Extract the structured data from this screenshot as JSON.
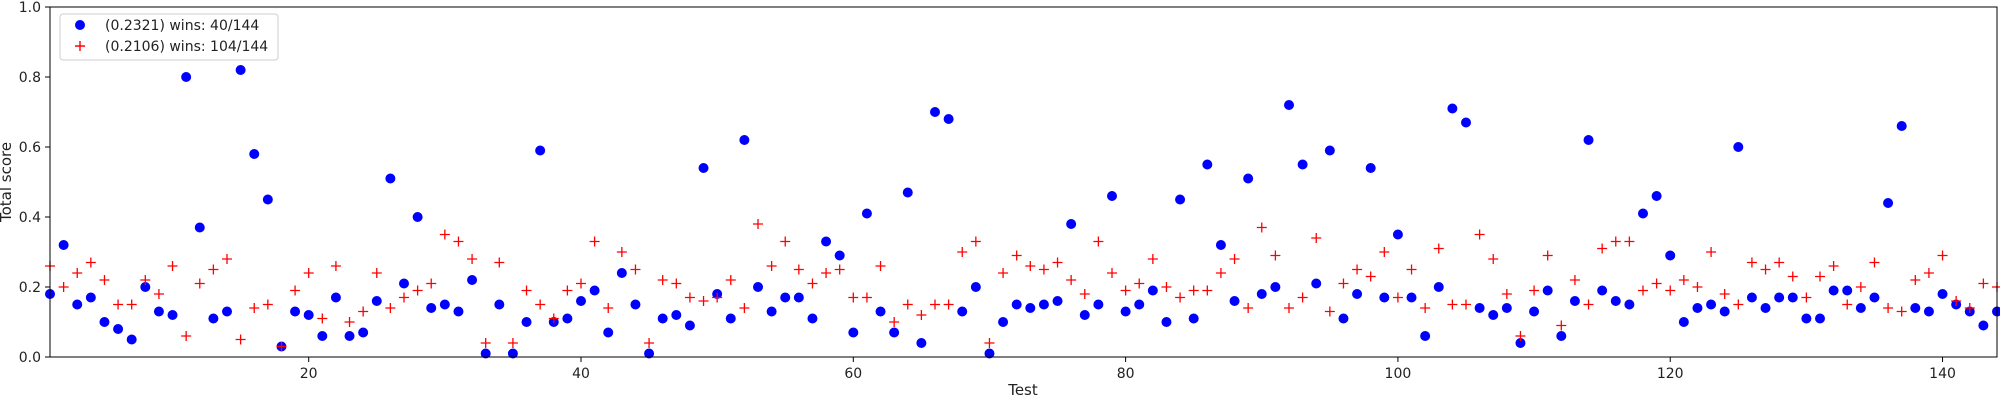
{
  "chart_data": {
    "type": "scatter",
    "xlabel": "Test",
    "ylabel": "Total score",
    "xlim": [
      1,
      144
    ],
    "ylim": [
      0,
      1.0
    ],
    "xticks": [
      20,
      40,
      60,
      80,
      100,
      120,
      140
    ],
    "yticks": [
      0.0,
      0.2,
      0.4,
      0.6,
      0.8,
      1.0
    ],
    "grid": false,
    "legend_position": "top-left",
    "series": [
      {
        "name": "(0.2321) wins: 40/144",
        "marker": "circle",
        "color": "#0000ff",
        "x": [
          1,
          2,
          3,
          4,
          5,
          6,
          7,
          8,
          9,
          10,
          11,
          12,
          13,
          14,
          15,
          16,
          17,
          18,
          19,
          20,
          21,
          22,
          23,
          24,
          25,
          26,
          27,
          28,
          29,
          30,
          31,
          32,
          33,
          34,
          35,
          36,
          37,
          38,
          39,
          40,
          41,
          42,
          43,
          44,
          45,
          46,
          47,
          48,
          49,
          50,
          51,
          52,
          53,
          54,
          55,
          56,
          57,
          58,
          59,
          60,
          61,
          62,
          63,
          64,
          65,
          66,
          67,
          68,
          69,
          70,
          71,
          72,
          73,
          74,
          75,
          76,
          77,
          78,
          79,
          80,
          81,
          82,
          83,
          84,
          85,
          86,
          87,
          88,
          89,
          90,
          91,
          92,
          93,
          94,
          95,
          96,
          97,
          98,
          99,
          100,
          101,
          102,
          103,
          104,
          105,
          106,
          107,
          108,
          109,
          110,
          111,
          112,
          113,
          114,
          115,
          116,
          117,
          118,
          119,
          120,
          121,
          122,
          123,
          124,
          125,
          126,
          127,
          128,
          129,
          130,
          131,
          132,
          133,
          134,
          135,
          136,
          137,
          138,
          139,
          140,
          141,
          142,
          143,
          144
        ],
        "y": [
          0.18,
          0.32,
          0.15,
          0.17,
          0.1,
          0.08,
          0.05,
          0.2,
          0.13,
          0.12,
          0.8,
          0.37,
          0.11,
          0.13,
          0.82,
          0.58,
          0.45,
          0.03,
          0.13,
          0.12,
          0.06,
          0.17,
          0.06,
          0.07,
          0.16,
          0.51,
          0.21,
          0.4,
          0.14,
          0.15,
          0.13,
          0.22,
          0.01,
          0.15,
          0.01,
          0.1,
          0.59,
          0.1,
          0.11,
          0.16,
          0.19,
          0.07,
          0.24,
          0.15,
          0.01,
          0.11,
          0.12,
          0.09,
          0.54,
          0.18,
          0.11,
          0.62,
          0.2,
          0.13,
          0.17,
          0.17,
          0.11,
          0.33,
          0.29,
          0.07,
          0.41,
          0.13,
          0.07,
          0.47,
          0.04,
          0.7,
          0.68,
          0.13,
          0.2,
          0.01,
          0.1,
          0.15,
          0.14,
          0.15,
          0.16,
          0.38,
          0.12,
          0.15,
          0.46,
          0.13,
          0.15,
          0.19,
          0.1,
          0.45,
          0.11,
          0.55,
          0.32,
          0.16,
          0.51,
          0.18,
          0.2,
          0.72,
          0.55,
          0.21,
          0.59,
          0.11,
          0.18,
          0.54,
          0.17,
          0.35,
          0.17,
          0.06,
          0.2,
          0.71,
          0.67,
          0.14,
          0.12,
          0.14,
          0.04,
          0.13,
          0.19,
          0.06,
          0.16,
          0.62,
          0.19,
          0.16,
          0.15,
          0.41,
          0.46,
          0.29,
          0.1,
          0.14,
          0.15,
          0.13,
          0.6,
          0.17,
          0.14,
          0.17,
          0.17,
          0.11,
          0.11,
          0.19,
          0.19,
          0.14,
          0.17,
          0.44,
          0.66,
          0.14,
          0.13,
          0.18,
          0.15,
          0.13,
          0.09,
          0.13
        ]
      },
      {
        "name": "(0.2106) wins: 104/144",
        "marker": "plus",
        "color": "#ff0000",
        "x": [
          1,
          2,
          3,
          4,
          5,
          6,
          7,
          8,
          9,
          10,
          11,
          12,
          13,
          14,
          15,
          16,
          17,
          18,
          19,
          20,
          21,
          22,
          23,
          24,
          25,
          26,
          27,
          28,
          29,
          30,
          31,
          32,
          33,
          34,
          35,
          36,
          37,
          38,
          39,
          40,
          41,
          42,
          43,
          44,
          45,
          46,
          47,
          48,
          49,
          50,
          51,
          52,
          53,
          54,
          55,
          56,
          57,
          58,
          59,
          60,
          61,
          62,
          63,
          64,
          65,
          66,
          67,
          68,
          69,
          70,
          71,
          72,
          73,
          74,
          75,
          76,
          77,
          78,
          79,
          80,
          81,
          82,
          83,
          84,
          85,
          86,
          87,
          88,
          89,
          90,
          91,
          92,
          93,
          94,
          95,
          96,
          97,
          98,
          99,
          100,
          101,
          102,
          103,
          104,
          105,
          106,
          107,
          108,
          109,
          110,
          111,
          112,
          113,
          114,
          115,
          116,
          117,
          118,
          119,
          120,
          121,
          122,
          123,
          124,
          125,
          126,
          127,
          128,
          129,
          130,
          131,
          132,
          133,
          134,
          135,
          136,
          137,
          138,
          139,
          140,
          141,
          142,
          143,
          144
        ],
        "y": [
          0.26,
          0.2,
          0.24,
          0.27,
          0.22,
          0.15,
          0.15,
          0.22,
          0.18,
          0.26,
          0.06,
          0.21,
          0.25,
          0.28,
          0.05,
          0.14,
          0.15,
          0.03,
          0.19,
          0.24,
          0.11,
          0.26,
          0.1,
          0.13,
          0.24,
          0.14,
          0.17,
          0.19,
          0.21,
          0.35,
          0.33,
          0.28,
          0.04,
          0.27,
          0.04,
          0.19,
          0.15,
          0.11,
          0.19,
          0.21,
          0.33,
          0.14,
          0.3,
          0.25,
          0.04,
          0.22,
          0.21,
          0.17,
          0.16,
          0.17,
          0.22,
          0.14,
          0.38,
          0.26,
          0.33,
          0.25,
          0.21,
          0.24,
          0.25,
          0.17,
          0.17,
          0.26,
          0.1,
          0.15,
          0.12,
          0.15,
          0.15,
          0.3,
          0.33,
          0.04,
          0.24,
          0.29,
          0.26,
          0.25,
          0.27,
          0.22,
          0.18,
          0.33,
          0.24,
          0.19,
          0.21,
          0.28,
          0.2,
          0.17,
          0.19,
          0.19,
          0.24,
          0.28,
          0.14,
          0.37,
          0.29,
          0.14,
          0.17,
          0.34,
          0.13,
          0.21,
          0.25,
          0.23,
          0.3,
          0.17,
          0.25,
          0.14,
          0.31,
          0.15,
          0.15,
          0.35,
          0.28,
          0.18,
          0.06,
          0.19,
          0.29,
          0.09,
          0.22,
          0.15,
          0.31,
          0.33,
          0.33,
          0.19,
          0.21,
          0.19,
          0.22,
          0.2,
          0.3,
          0.18,
          0.15,
          0.27,
          0.25,
          0.27,
          0.23,
          0.17,
          0.23,
          0.26,
          0.15,
          0.2,
          0.27,
          0.14,
          0.13,
          0.22,
          0.24,
          0.29,
          0.16,
          0.14,
          0.21,
          0.2
        ]
      }
    ]
  }
}
